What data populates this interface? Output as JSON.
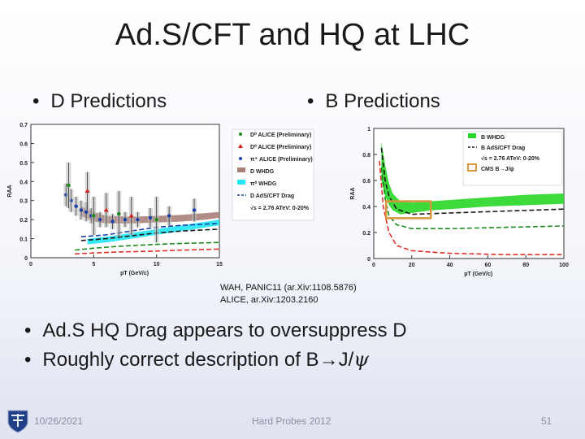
{
  "slide": {
    "title": "Ad.S/CFT and HQ at LHC",
    "bullet_d": "D Predictions",
    "bullet_b": "B Predictions",
    "bullet_drag": "Ad.S HQ Drag appears to oversuppress D",
    "bullet_desc_pre": "Roughly correct description of B→J/",
    "bullet_desc_psi": "ψ",
    "bullet_mark": "•",
    "ref_line1": "WAH, PANIC11 (ar.Xiv:1108.5876)",
    "ref_line2": "ALICE, ar.Xiv:1203.2160"
  },
  "footer": {
    "date": "10/26/2021",
    "conference": "Hard Probes 2012",
    "page": "51"
  },
  "colors": {
    "whdg_band": "#a97f7a",
    "drag_band": "#22e6f2",
    "b_whdg_band": "#27d626",
    "cms_box": "#d9963a",
    "red_dash": "#e0302a",
    "green_dash": "#1e8a1e",
    "blue_dash": "#1a3ea8",
    "black_dash": "#1a1a1a"
  },
  "chart_data": [
    {
      "type": "line",
      "title": "D Predictions",
      "xlabel": "pT (GeV/c)",
      "ylabel": "RAA",
      "xlim": [
        0,
        15
      ],
      "ylim": [
        0,
        0.7
      ],
      "xticks": [
        "0",
        "5",
        "10",
        "15"
      ],
      "yticks": [
        "0",
        "0.1",
        "0.2",
        "0.3",
        "0.4",
        "0.5",
        "0.6",
        "0.7"
      ],
      "legend": [
        {
          "label": "D⁰ ALICE (Preliminary)",
          "marker": "circle",
          "color": "#1a8a1a"
        },
        {
          "label": "D⁰ ALICE (Preliminary)",
          "marker": "triangle",
          "color": "#d02020"
        },
        {
          "label": "π⁺ ALICE (Preliminary)",
          "marker": "circle",
          "color": "#1a3ea8"
        },
        {
          "label": "D WHDG",
          "marker": "band",
          "color": "#a97f7a"
        },
        {
          "label": "π⁰ WHDG",
          "marker": "band",
          "color": "#22e6f2"
        },
        {
          "label": "D AdS/CFT Drag",
          "marker": "dash",
          "color": "#1a3ea8"
        },
        {
          "label": "√s = 2.76 ATeV: 0-20%",
          "marker": "none",
          "color": "#000000"
        }
      ],
      "series": [
        {
          "name": "D WHDG band",
          "kind": "band",
          "x": [
            4,
            5,
            6,
            8,
            10,
            12,
            14,
            15
          ],
          "low": [
            0.22,
            0.19,
            0.18,
            0.18,
            0.185,
            0.19,
            0.2,
            0.21
          ],
          "high": [
            0.27,
            0.24,
            0.22,
            0.215,
            0.22,
            0.225,
            0.235,
            0.24
          ]
        },
        {
          "name": "pi0 WHDG band",
          "kind": "band",
          "x": [
            4.5,
            6,
            8,
            10,
            12,
            14,
            15
          ],
          "low": [
            0.07,
            0.08,
            0.1,
            0.12,
            0.14,
            0.16,
            0.17
          ],
          "high": [
            0.1,
            0.11,
            0.13,
            0.15,
            0.17,
            0.19,
            0.2
          ]
        },
        {
          "name": "D AdS/CFT Drag",
          "kind": "dash",
          "color": "#1a3ea8",
          "x": [
            4,
            6,
            8,
            10,
            12,
            15
          ],
          "y": [
            0.11,
            0.12,
            0.14,
            0.16,
            0.17,
            0.18
          ]
        },
        {
          "name": "black dashed",
          "kind": "dash",
          "color": "#1a1a1a",
          "x": [
            4,
            6,
            8,
            10,
            12,
            15
          ],
          "y": [
            0.09,
            0.1,
            0.115,
            0.13,
            0.14,
            0.15
          ]
        },
        {
          "name": "green dashed",
          "kind": "dash",
          "color": "#1e8a1e",
          "x": [
            3.5,
            5,
            7,
            10,
            12,
            15
          ],
          "y": [
            0.04,
            0.05,
            0.06,
            0.07,
            0.075,
            0.08
          ]
        },
        {
          "name": "red dashed",
          "kind": "dash",
          "color": "#e0302a",
          "x": [
            3.5,
            5,
            7,
            10,
            12,
            15
          ],
          "y": [
            0.02,
            0.025,
            0.03,
            0.035,
            0.04,
            0.045
          ]
        },
        {
          "name": "pi+ ALICE (Preliminary)",
          "kind": "points",
          "color": "#1a3ea8",
          "x": [
            2.8,
            3.2,
            3.6,
            4.0,
            4.4,
            4.8,
            5.5,
            6.5,
            7.5,
            8.5,
            9.5,
            11,
            13
          ],
          "y": [
            0.33,
            0.3,
            0.27,
            0.25,
            0.24,
            0.22,
            0.2,
            0.19,
            0.2,
            0.2,
            0.21,
            0.22,
            0.25
          ],
          "err": [
            0.06,
            0.06,
            0.05,
            0.05,
            0.05,
            0.04,
            0.04,
            0.04,
            0.04,
            0.04,
            0.05,
            0.05,
            0.06
          ]
        },
        {
          "name": "D0 ALICE (Preliminary)",
          "kind": "points",
          "color": "#1a8a1a",
          "x": [
            3.0,
            5.0,
            7.0,
            10.0
          ],
          "y": [
            0.38,
            0.22,
            0.23,
            0.2
          ],
          "err": [
            0.12,
            0.1,
            0.12,
            0.12
          ]
        },
        {
          "name": "D0 ALICE (Preliminary) triangle",
          "kind": "points",
          "color": "#d02020",
          "x": [
            4.5,
            6.0,
            8.0
          ],
          "y": [
            0.35,
            0.25,
            0.22
          ],
          "err": [
            0.1,
            0.09,
            0.1
          ]
        }
      ]
    },
    {
      "type": "line",
      "title": "B Predictions",
      "xlabel": "pT (GeV/c)",
      "ylabel": "RAA",
      "xlim": [
        0,
        100
      ],
      "ylim": [
        0,
        1
      ],
      "xticks": [
        "0",
        "20",
        "40",
        "60",
        "80",
        "100"
      ],
      "yticks": [
        "0",
        "0.2",
        "0.4",
        "0.6",
        "0.8",
        "1"
      ],
      "legend": [
        {
          "label": "B WHDG",
          "marker": "band",
          "color": "#27d626"
        },
        {
          "label": "B AdS/CFT Drag",
          "marker": "dash",
          "color": "#1a1a1a"
        },
        {
          "label": "√s = 2.76 ATeV: 0-20%",
          "marker": "none",
          "color": "#000000"
        },
        {
          "label": "CMS B→J/ψ",
          "marker": "box",
          "color": "#d9963a"
        }
      ],
      "series": [
        {
          "name": "B WHDG",
          "kind": "band",
          "x": [
            4,
            6,
            8,
            10,
            14,
            20,
            30,
            40,
            60,
            80,
            100
          ],
          "low": [
            0.6,
            0.48,
            0.41,
            0.37,
            0.34,
            0.35,
            0.37,
            0.38,
            0.4,
            0.41,
            0.42
          ],
          "high": [
            0.9,
            0.72,
            0.58,
            0.5,
            0.44,
            0.43,
            0.44,
            0.45,
            0.47,
            0.49,
            0.5
          ]
        },
        {
          "name": "B AdS/CFT Drag",
          "kind": "dash",
          "color": "#1a1a1a",
          "x": [
            4,
            6,
            8,
            12,
            20,
            40,
            60,
            100
          ],
          "y": [
            0.85,
            0.6,
            0.48,
            0.38,
            0.34,
            0.35,
            0.36,
            0.38
          ]
        },
        {
          "name": "green dashed",
          "kind": "dash",
          "color": "#1e8a1e",
          "x": [
            4,
            6,
            8,
            12,
            20,
            40,
            70,
            100
          ],
          "y": [
            0.7,
            0.46,
            0.33,
            0.26,
            0.23,
            0.23,
            0.24,
            0.25
          ]
        },
        {
          "name": "red dashed",
          "kind": "dash",
          "color": "#e0302a",
          "x": [
            3,
            5,
            8,
            12,
            20,
            40,
            70,
            100
          ],
          "y": [
            0.75,
            0.4,
            0.2,
            0.1,
            0.06,
            0.04,
            0.03,
            0.03
          ]
        },
        {
          "name": "CMS B→J/ψ",
          "kind": "box",
          "x_range": [
            6.5,
            30
          ],
          "y_range": [
            0.31,
            0.44
          ]
        }
      ]
    }
  ]
}
